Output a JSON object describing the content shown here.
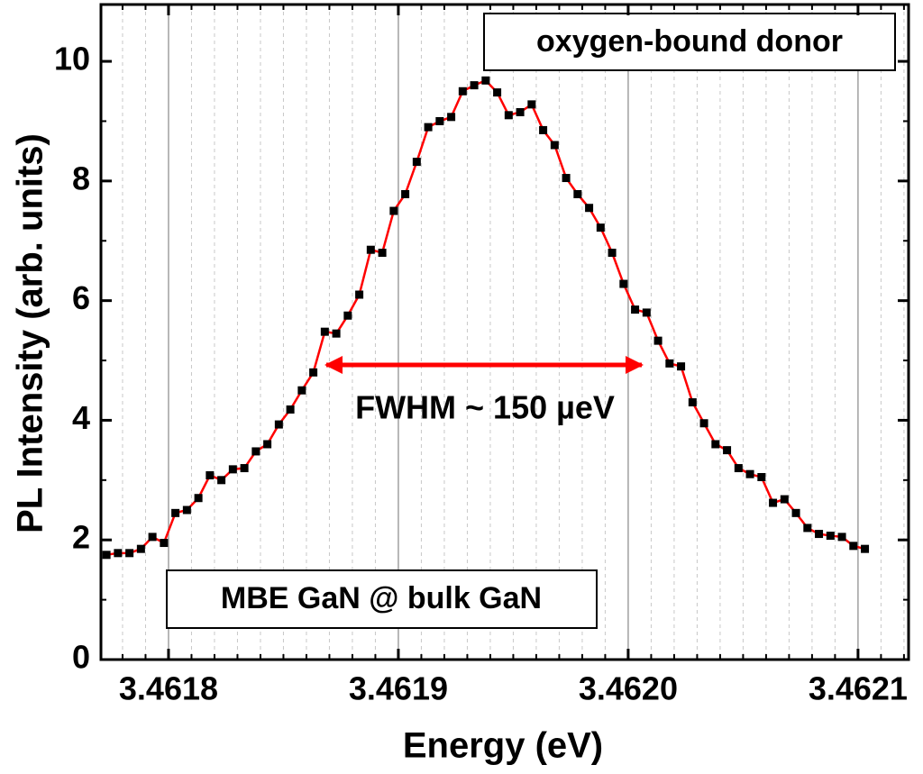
{
  "chart_data": {
    "type": "line",
    "x_label": "Energy (eV)",
    "y_label": "PL Intensity (arb. units)",
    "annotations": [
      "oxygen-bound donor",
      "MBE GaN @ bulk GaN",
      "FWHM ~ 150 µeV"
    ],
    "line_color": "#ff0000",
    "marker_color": "#000000",
    "x": [
      3.461773,
      3.461778,
      3.461783,
      3.461788,
      3.461793,
      3.461798,
      3.461803,
      3.461808,
      3.461813,
      3.461818,
      3.461823,
      3.461828,
      3.461833,
      3.461838,
      3.461843,
      3.461848,
      3.461853,
      3.461858,
      3.461863,
      3.461868,
      3.461873,
      3.461878,
      3.461883,
      3.461888,
      3.461893,
      3.461898,
      3.461903,
      3.461908,
      3.461913,
      3.461918,
      3.461923,
      3.461928,
      3.461933,
      3.461938,
      3.461943,
      3.461948,
      3.461953,
      3.461958,
      3.461963,
      3.461968,
      3.461973,
      3.461978,
      3.461983,
      3.461988,
      3.461993,
      3.461998,
      3.462003,
      3.462008,
      3.462013,
      3.462018,
      3.462023,
      3.462028,
      3.462033,
      3.462038,
      3.462043,
      3.462048,
      3.462053,
      3.462058,
      3.462063,
      3.462068,
      3.462073,
      3.462078,
      3.462083,
      3.462088,
      3.462093,
      3.462098,
      3.462103
    ],
    "values": [
      1.75,
      1.78,
      1.78,
      1.85,
      2.05,
      1.95,
      2.45,
      2.5,
      2.7,
      3.08,
      3.0,
      3.18,
      3.2,
      3.48,
      3.6,
      3.93,
      4.18,
      4.5,
      4.8,
      5.48,
      5.45,
      5.75,
      6.1,
      6.85,
      6.8,
      7.5,
      7.78,
      8.32,
      8.9,
      9.0,
      9.07,
      9.5,
      9.6,
      9.68,
      9.48,
      9.1,
      9.15,
      9.28,
      8.85,
      8.6,
      8.05,
      7.78,
      7.55,
      7.22,
      6.8,
      6.28,
      5.85,
      5.8,
      5.33,
      4.95,
      4.9,
      4.3,
      3.95,
      3.6,
      3.5,
      3.2,
      3.1,
      3.05,
      2.62,
      2.68,
      2.45,
      2.2,
      2.1,
      2.07,
      2.05,
      1.9,
      1.85
    ],
    "xlim": [
      3.4617706,
      3.462122
    ],
    "xticks": [
      3.4618,
      3.4619,
      {
        "value": 3.462,
        "label": "3.4620"
      },
      3.4621
    ],
    "xminorticks": [
      3.46178,
      3.46179,
      3.46181,
      3.46182,
      3.46183,
      3.46184,
      3.46185,
      3.46186,
      3.46187,
      3.46188,
      3.46189,
      3.46191,
      3.46192,
      3.46193,
      3.46194,
      3.46195,
      3.46196,
      3.46197,
      3.46198,
      3.46199,
      3.46201,
      3.46202,
      3.46203,
      3.46204,
      3.46205,
      3.46206,
      3.46207,
      3.46208,
      3.46209,
      3.46211,
      3.46212
    ],
    "ylim": [
      0,
      10.95
    ],
    "yticks": [
      0,
      2,
      4,
      6,
      8,
      10
    ],
    "yminorticks": [
      1,
      3,
      5,
      7,
      9
    ],
    "grid": true
  }
}
